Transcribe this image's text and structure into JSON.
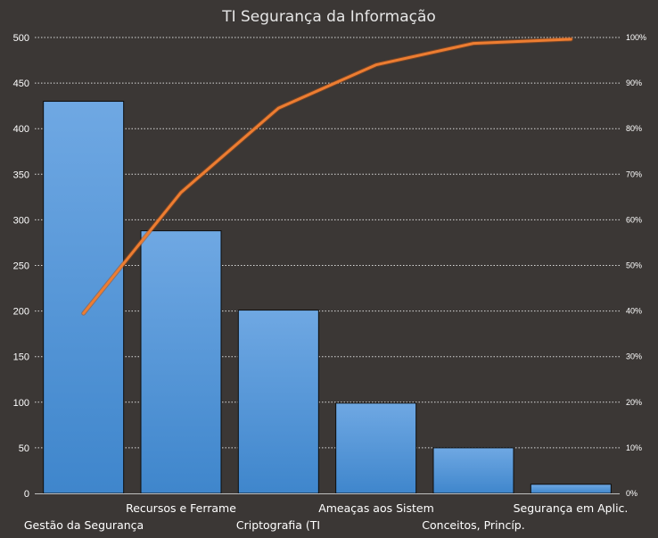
{
  "chart_data": {
    "type": "bar",
    "title": "TI Segurança da Informação",
    "categories": [
      "Gestão da Segurança",
      "Recursos e Ferrame",
      "Criptografia (TI",
      "Ameaças aos Sistem",
      "Conceitos, Princíp.",
      "Segurança em Aplic."
    ],
    "series": [
      {
        "type": "bar",
        "values": [
          430,
          288,
          201,
          99,
          50,
          10
        ]
      },
      {
        "type": "line",
        "axis": "secondary",
        "values": [
          39.5,
          66.0,
          84.5,
          94.0,
          98.7,
          99.6
        ]
      }
    ],
    "ylim": [
      0,
      500
    ],
    "yticks": [
      "0",
      "50",
      "100",
      "150",
      "200",
      "250",
      "300",
      "350",
      "400",
      "450",
      "500"
    ],
    "y2lim": [
      0,
      100
    ],
    "y2ticks": [
      "0%",
      "10%",
      "20%",
      "30%",
      "40%",
      "50%",
      "60%",
      "70%",
      "80%",
      "90%",
      "100%"
    ],
    "grid": true,
    "legend": "none",
    "colors": {
      "bar": "#5b9bd5",
      "line": "#ed7d31",
      "background": "#3b3735",
      "grid": "#d9d9d9"
    }
  }
}
